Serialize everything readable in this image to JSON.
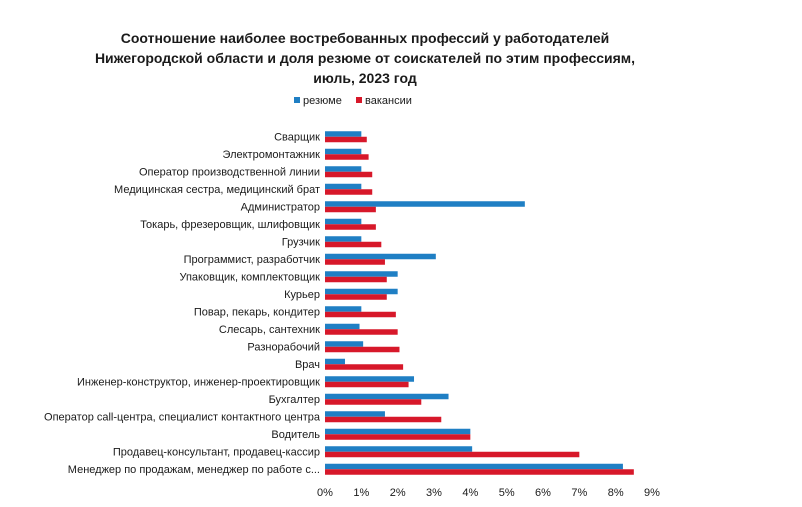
{
  "chart_data": {
    "type": "bar",
    "orientation": "horizontal",
    "title_lines": [
      "Соотношение наиболее востребованных профессий у работодателей",
      "Нижегородской области и доля резюме от соискателей по этим профессиям,",
      "июль, 2023 год"
    ],
    "legend_position": "top",
    "categories": [
      "Сварщик",
      "Электромонтажник",
      "Оператор производственной линии",
      "Медицинская сестра, медицинский брат",
      "Администратор",
      "Токарь, фрезеровщик, шлифовщик",
      "Грузчик",
      "Программист, разработчик",
      "Упаковщик, комплектовщик",
      "Курьер",
      "Повар, пекарь, кондитер",
      "Слесарь, сантехник",
      "Разнорабочий",
      "Врач",
      "Инженер-конструктор, инженер-проектировщик",
      "Бухгалтер",
      "Оператор call-центра, специалист контактного центра",
      "Водитель",
      "Продавец-консультант, продавец-кассир",
      "Менеджер по продажам, менеджер по работе с..."
    ],
    "series": [
      {
        "name": "резюме",
        "color": "#1f7fc4",
        "values": [
          1.0,
          1.0,
          1.0,
          1.0,
          5.5,
          1.0,
          1.0,
          3.05,
          2.0,
          2.0,
          1.0,
          0.95,
          1.05,
          0.55,
          2.45,
          3.4,
          1.65,
          4.0,
          4.05,
          8.2
        ]
      },
      {
        "name": "вакансии",
        "color": "#d7182a",
        "values": [
          1.15,
          1.2,
          1.3,
          1.3,
          1.4,
          1.4,
          1.55,
          1.65,
          1.7,
          1.7,
          1.95,
          2.0,
          2.05,
          2.15,
          2.3,
          2.65,
          3.2,
          4.0,
          7.0,
          8.5
        ]
      }
    ],
    "xlim": [
      0,
      9
    ],
    "x_ticks": [
      "0%",
      "1%",
      "2%",
      "3%",
      "4%",
      "5%",
      "6%",
      "7%",
      "8%",
      "9%"
    ],
    "grid": false
  }
}
